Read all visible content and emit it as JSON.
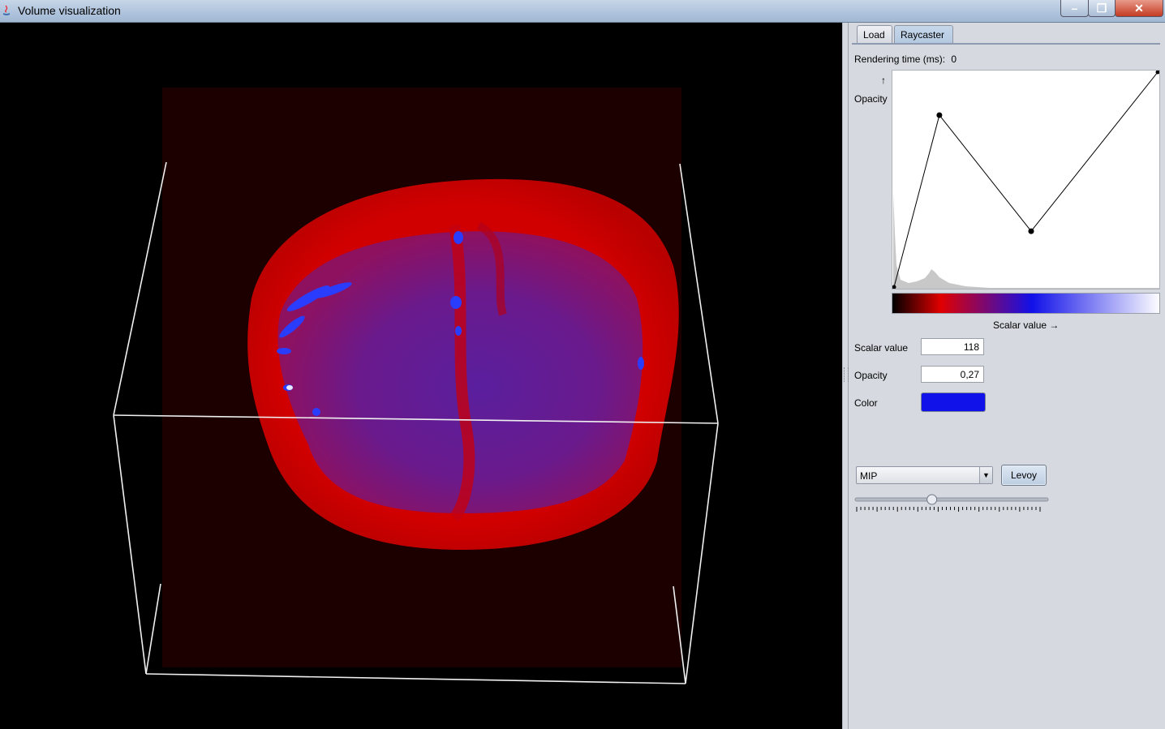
{
  "window": {
    "title": "Volume visualization",
    "minimize_glyph": "–",
    "maximize_glyph": "❐",
    "close_glyph": "✕"
  },
  "tabs": [
    {
      "label": "Load",
      "selected": false
    },
    {
      "label": "Raycaster",
      "selected": true
    }
  ],
  "rendering_time": {
    "label": "Rendering time (ms):",
    "value": "0"
  },
  "transfer_function": {
    "y_axis_arrow": "↑",
    "y_axis_label": "Opacity",
    "x_axis_label": "Scalar value →",
    "control_points": [
      {
        "scalar": 0,
        "opacity": 0.0
      },
      {
        "scalar": 43,
        "opacity": 0.8
      },
      {
        "scalar": 130,
        "opacity": 0.26
      },
      {
        "scalar": 250,
        "opacity": 1.0
      }
    ],
    "scalar_max": 250,
    "colormap": [
      "#000000",
      "#e00000",
      "#1111e9",
      "#ffffff"
    ]
  },
  "fields": {
    "scalar_value": {
      "label": "Scalar value",
      "value": "118"
    },
    "opacity": {
      "label": "Opacity",
      "value": "0,27"
    },
    "color": {
      "label": "Color",
      "value_hex": "#1111e9"
    }
  },
  "mode_select": {
    "selected": "MIP"
  },
  "levoy_button": {
    "label": "Levoy"
  },
  "slider": {
    "value_fraction": 0.41
  }
}
